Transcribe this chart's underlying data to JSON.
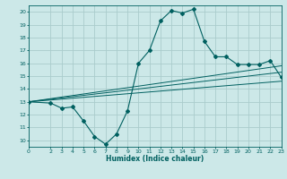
{
  "title": "",
  "xlabel": "Humidex (Indice chaleur)",
  "bg_color": "#cce8e8",
  "grid_color": "#aacccc",
  "line_color": "#006060",
  "xlim": [
    0,
    23
  ],
  "ylim": [
    9.5,
    20.5
  ],
  "yticks": [
    10,
    11,
    12,
    13,
    14,
    15,
    16,
    17,
    18,
    19,
    20
  ],
  "xticks": [
    0,
    2,
    3,
    4,
    5,
    6,
    7,
    8,
    9,
    10,
    11,
    12,
    13,
    14,
    15,
    16,
    17,
    18,
    19,
    20,
    21,
    22,
    23
  ],
  "main_line_x": [
    0,
    2,
    3,
    4,
    5,
    6,
    7,
    8,
    9,
    10,
    11,
    12,
    13,
    14,
    15,
    16,
    17,
    18,
    19,
    20,
    21,
    22,
    23
  ],
  "main_line_y": [
    13.0,
    12.9,
    12.5,
    12.6,
    11.5,
    10.3,
    9.7,
    10.5,
    12.3,
    16.0,
    17.0,
    19.3,
    20.1,
    19.9,
    20.2,
    17.7,
    16.5,
    16.5,
    15.9,
    15.9,
    15.9,
    16.2,
    14.9
  ],
  "reg_line1_x": [
    0,
    23
  ],
  "reg_line1_y": [
    13.0,
    15.3
  ],
  "reg_line2_x": [
    0,
    23
  ],
  "reg_line2_y": [
    13.0,
    15.8
  ],
  "reg_line3_x": [
    0,
    23
  ],
  "reg_line3_y": [
    13.0,
    14.6
  ]
}
